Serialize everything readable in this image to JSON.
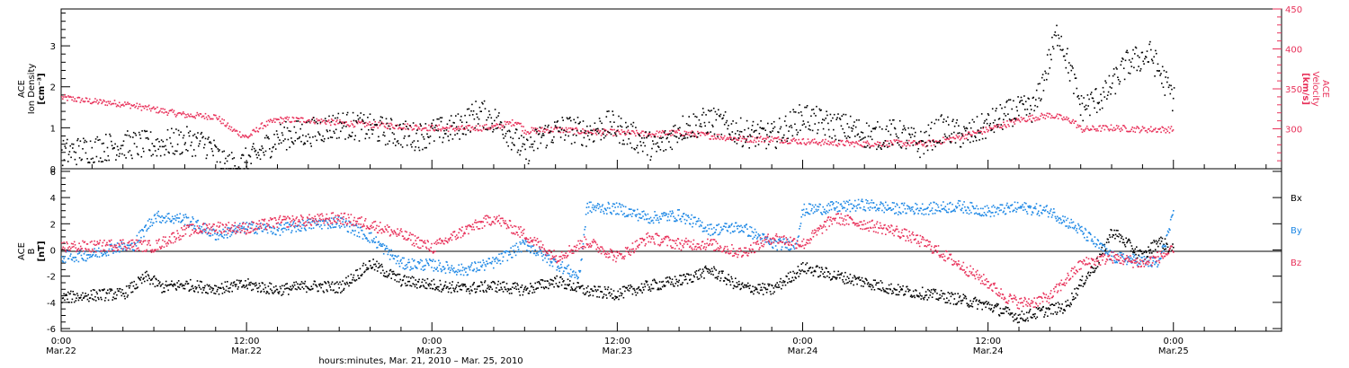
{
  "chart_data": [
    {
      "type": "scatter",
      "panel": "top",
      "ylabel": [
        "ACE",
        "Ion Density",
        "[cm⁻³]"
      ],
      "y2label": [
        "ACE",
        "Velocity",
        "[km/s]"
      ],
      "ylim": [
        0,
        3.9
      ],
      "y2lim": [
        250,
        450
      ],
      "yticks": [
        0,
        1,
        2,
        3
      ],
      "y2ticks": [
        300,
        350,
        400,
        450
      ],
      "colors": {
        "density": "#000000",
        "velocity": "#e8315a"
      },
      "series": [
        {
          "name": "Ion Density",
          "axis": "left",
          "x": [
            0,
            2,
            4,
            6,
            8,
            9.5,
            10.5,
            11.5,
            12.5,
            14,
            16,
            18,
            20,
            21.5,
            23,
            24,
            25.5,
            27,
            28.5,
            30,
            31,
            32.5,
            34,
            35.5,
            37,
            38.5,
            40,
            42,
            44,
            46,
            48,
            49.5,
            51,
            52.5,
            54,
            55.5,
            57,
            58.5,
            60,
            61.5,
            63,
            64.5,
            66,
            67.5,
            69,
            70.5,
            72
          ],
          "y": [
            0.4,
            0.5,
            0.6,
            0.6,
            0.7,
            0.6,
            0.1,
            0.1,
            0.3,
            0.8,
            0.9,
            1.1,
            1.0,
            0.9,
            0.8,
            0.9,
            1.0,
            1.4,
            1.1,
            0.4,
            0.8,
            1.0,
            0.9,
            1.1,
            0.8,
            0.5,
            1.0,
            1.2,
            0.9,
            0.8,
            1.3,
            1.1,
            1.0,
            0.8,
            0.9,
            0.6,
            1.0,
            0.8,
            1.1,
            1.4,
            1.5,
            3.4,
            1.5,
            1.8,
            2.6,
            2.8,
            1.7
          ]
        },
        {
          "name": "Velocity",
          "axis": "right",
          "x": [
            0,
            2,
            4,
            6,
            8,
            10,
            11,
            12,
            13,
            14,
            16,
            18,
            20,
            22,
            24,
            26,
            28,
            29.5,
            30,
            32,
            34,
            36,
            38,
            40,
            42,
            44,
            46,
            48,
            50,
            52,
            54,
            56,
            58,
            60,
            62,
            64,
            65.5,
            66,
            68,
            70,
            72
          ],
          "y": [
            340,
            335,
            332,
            325,
            318,
            316,
            300,
            290,
            305,
            312,
            312,
            308,
            306,
            304,
            302,
            301,
            303,
            310,
            298,
            300,
            297,
            296,
            294,
            296,
            292,
            288,
            288,
            285,
            283,
            282,
            283,
            282,
            290,
            300,
            312,
            318,
            310,
            300,
            302,
            300,
            300
          ]
        }
      ]
    },
    {
      "type": "scatter",
      "panel": "bottom",
      "ylabel": [
        "ACE",
        "B",
        "[nT]"
      ],
      "ylim": [
        -6.2,
        6.2
      ],
      "yticks": [
        -6,
        -4,
        -2,
        0,
        2,
        4,
        6
      ],
      "colors": {
        "Bx": "#000000",
        "By": "#1e88e5",
        "Bz": "#e8315a"
      },
      "series": [
        {
          "name": "Bx",
          "x": [
            0,
            2,
            4,
            5.5,
            6.5,
            8,
            10,
            12,
            14,
            16,
            18,
            20,
            22,
            24,
            26,
            28,
            30,
            32,
            34,
            36,
            38,
            40,
            42,
            44,
            46,
            48,
            50,
            52,
            54,
            56,
            58,
            60,
            62,
            64,
            65,
            66,
            67,
            68,
            69,
            70,
            71,
            72
          ],
          "y": [
            -3.6,
            -3.4,
            -3.3,
            -2.0,
            -2.8,
            -2.6,
            -2.9,
            -2.6,
            -3.0,
            -2.7,
            -2.8,
            -1.0,
            -2.3,
            -2.6,
            -2.9,
            -2.7,
            -3.0,
            -2.3,
            -3.1,
            -3.3,
            -2.7,
            -2.3,
            -1.5,
            -2.8,
            -3.0,
            -1.3,
            -1.9,
            -2.4,
            -3.0,
            -3.3,
            -3.7,
            -4.2,
            -5.1,
            -4.5,
            -4.3,
            -2.5,
            -1.0,
            1.5,
            0.5,
            -0.5,
            0.8,
            0
          ]
        },
        {
          "name": "By",
          "x": [
            0,
            2,
            3.5,
            4.5,
            6,
            8,
            10,
            12,
            14,
            16,
            18,
            20,
            22,
            24,
            26,
            28,
            30,
            32,
            33.5,
            34,
            36,
            38,
            40,
            42,
            44,
            46,
            47.5,
            48,
            50,
            52,
            54,
            56,
            58,
            60,
            62,
            64,
            66,
            68,
            70,
            71,
            72
          ],
          "y": [
            -0.5,
            -0.3,
            0.3,
            0.2,
            2.6,
            2.4,
            1.2,
            1.8,
            1.6,
            2.0,
            2.2,
            1.0,
            -1.0,
            -1.1,
            -1.5,
            -0.9,
            0.5,
            -1.0,
            -2.0,
            3.3,
            3.2,
            2.5,
            2.7,
            1.6,
            1.8,
            0.5,
            0.5,
            3.1,
            3.3,
            3.5,
            3.2,
            3.2,
            3.4,
            3.0,
            3.3,
            3.0,
            1.5,
            -0.5,
            -0.8,
            -1.0,
            2.8
          ]
        },
        {
          "name": "Bz",
          "x": [
            0,
            2,
            4,
            6,
            8,
            10,
            12,
            14,
            16,
            18,
            20,
            22,
            24,
            26,
            28,
            30,
            32,
            34,
            36,
            38,
            40,
            42,
            44,
            46,
            48,
            50,
            52,
            54,
            56,
            58,
            60,
            61,
            62,
            63,
            64,
            66,
            68,
            70,
            72
          ],
          "y": [
            0.3,
            0.3,
            0.5,
            0.3,
            1.5,
            1.8,
            1.7,
            2.2,
            2.3,
            2.5,
            2.0,
            1.2,
            0.2,
            1.5,
            2.5,
            1.2,
            -0.5,
            0.7,
            -0.5,
            1.0,
            0.5,
            0.5,
            -0.2,
            1.0,
            0.5,
            2.5,
            2.0,
            1.5,
            0.5,
            -1.0,
            -2.5,
            -3.5,
            -4.0,
            -3.9,
            -3.5,
            -1.0,
            -0.5,
            -1.0,
            0
          ]
        }
      ]
    }
  ],
  "x_axis": {
    "range_hours": [
      0,
      79
    ],
    "ticks": [
      {
        "h": 0,
        "time": "0:00",
        "date": "Mar.22"
      },
      {
        "h": 12,
        "time": "12:00",
        "date": "Mar.22"
      },
      {
        "h": 24,
        "time": "0:00",
        "date": "Mar.23"
      },
      {
        "h": 36,
        "time": "12:00",
        "date": "Mar.23"
      },
      {
        "h": 48,
        "time": "0:00",
        "date": "Mar.24"
      },
      {
        "h": 60,
        "time": "12:00",
        "date": "Mar.24"
      },
      {
        "h": 72,
        "time": "0:00",
        "date": "Mar.25"
      }
    ],
    "title": "hours:minutes, Mar. 21, 2010 – Mar. 25, 2010"
  }
}
